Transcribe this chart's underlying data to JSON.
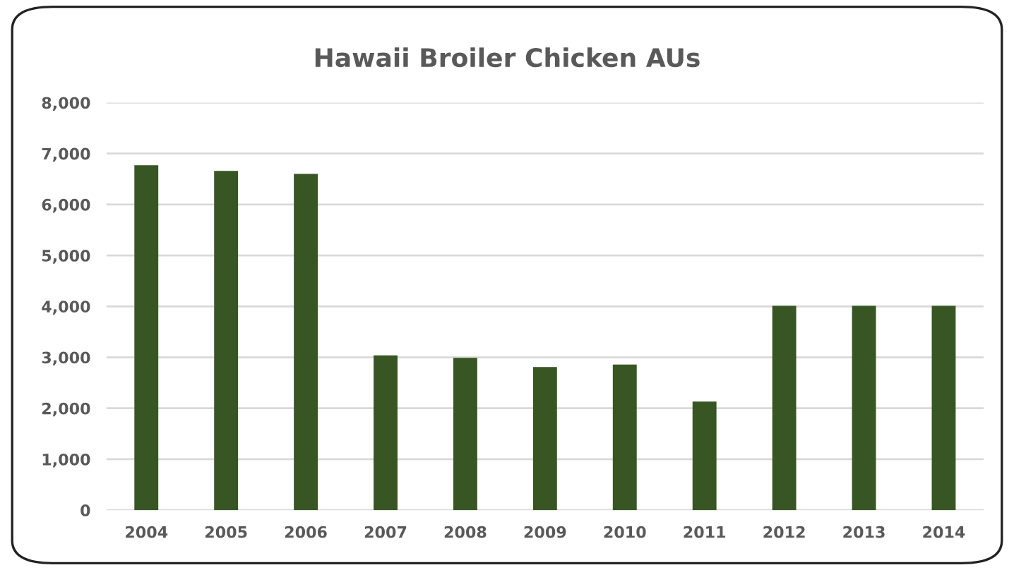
{
  "chart_data": {
    "type": "bar",
    "title": "Hawaii Broiler Chicken AUs",
    "categories": [
      "2004",
      "2005",
      "2006",
      "2007",
      "2008",
      "2009",
      "2010",
      "2011",
      "2012",
      "2013",
      "2014"
    ],
    "values": [
      6770,
      6660,
      6600,
      3040,
      2990,
      2810,
      2860,
      2130,
      4010,
      4010,
      4010
    ],
    "color": "#375623",
    "ylim": [
      0,
      8000
    ],
    "yticks": [
      {
        "value": 0,
        "label": "0"
      },
      {
        "value": 1000,
        "label": "1,000"
      },
      {
        "value": 2000,
        "label": "2,000"
      },
      {
        "value": 3000,
        "label": "3,000"
      },
      {
        "value": 4000,
        "label": "4,000"
      },
      {
        "value": 5000,
        "label": "5,000"
      },
      {
        "value": 6000,
        "label": "6,000"
      },
      {
        "value": 7000,
        "label": "7,000"
      },
      {
        "value": 8000,
        "label": "8,000"
      }
    ],
    "grid": "y"
  }
}
